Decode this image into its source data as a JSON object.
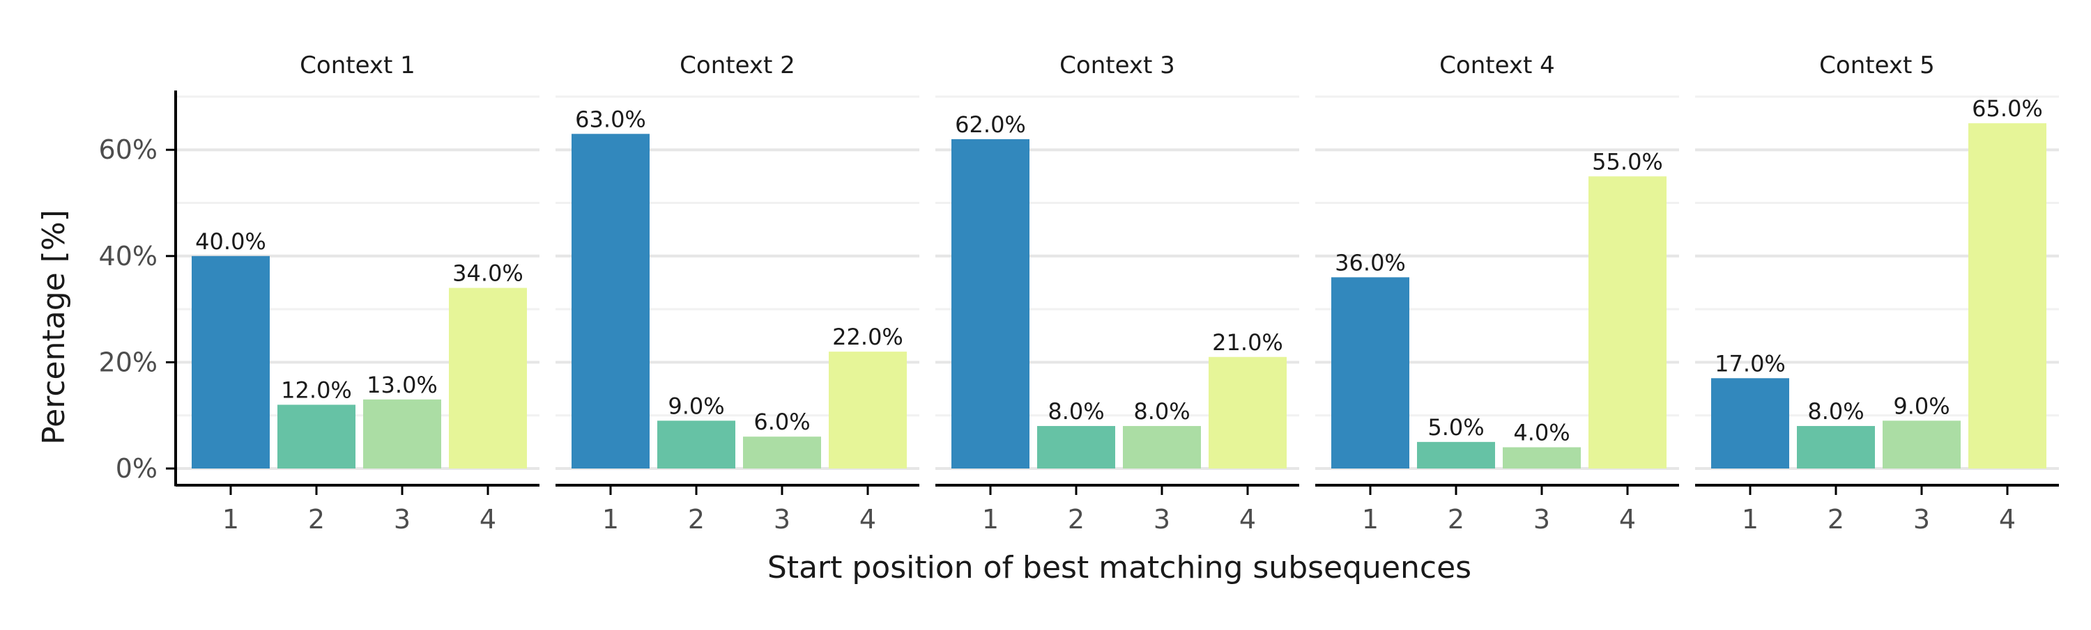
{
  "chart_data": {
    "type": "bar",
    "xlabel": "Start position of best matching subsequences",
    "ylabel": "Percentage [%]",
    "ylim": [
      0,
      70
    ],
    "yticks": [
      0,
      20,
      40,
      60
    ],
    "ytick_labels": [
      "0%",
      "20%",
      "40%",
      "60%"
    ],
    "grid": true,
    "categories": [
      "1",
      "2",
      "3",
      "4"
    ],
    "colors": [
      "#3288BD",
      "#66C2A5",
      "#ABDDA4",
      "#E6F598"
    ],
    "panels": [
      {
        "title": "Context 1",
        "values": [
          40.0,
          12.0,
          13.0,
          34.0
        ],
        "labels": [
          "40.0%",
          "12.0%",
          "13.0%",
          "34.0%"
        ]
      },
      {
        "title": "Context 2",
        "values": [
          63.0,
          9.0,
          6.0,
          22.0
        ],
        "labels": [
          "63.0%",
          "9.0%",
          "6.0%",
          "22.0%"
        ]
      },
      {
        "title": "Context 3",
        "values": [
          62.0,
          8.0,
          8.0,
          21.0
        ],
        "labels": [
          "62.0%",
          "8.0%",
          "8.0%",
          "21.0%"
        ]
      },
      {
        "title": "Context 4",
        "values": [
          36.0,
          5.0,
          4.0,
          55.0
        ],
        "labels": [
          "36.0%",
          "5.0%",
          "4.0%",
          "55.0%"
        ]
      },
      {
        "title": "Context 5",
        "values": [
          17.0,
          8.0,
          9.0,
          65.0
        ],
        "labels": [
          "17.0%",
          "8.0%",
          "9.0%",
          "65.0%"
        ]
      }
    ]
  }
}
